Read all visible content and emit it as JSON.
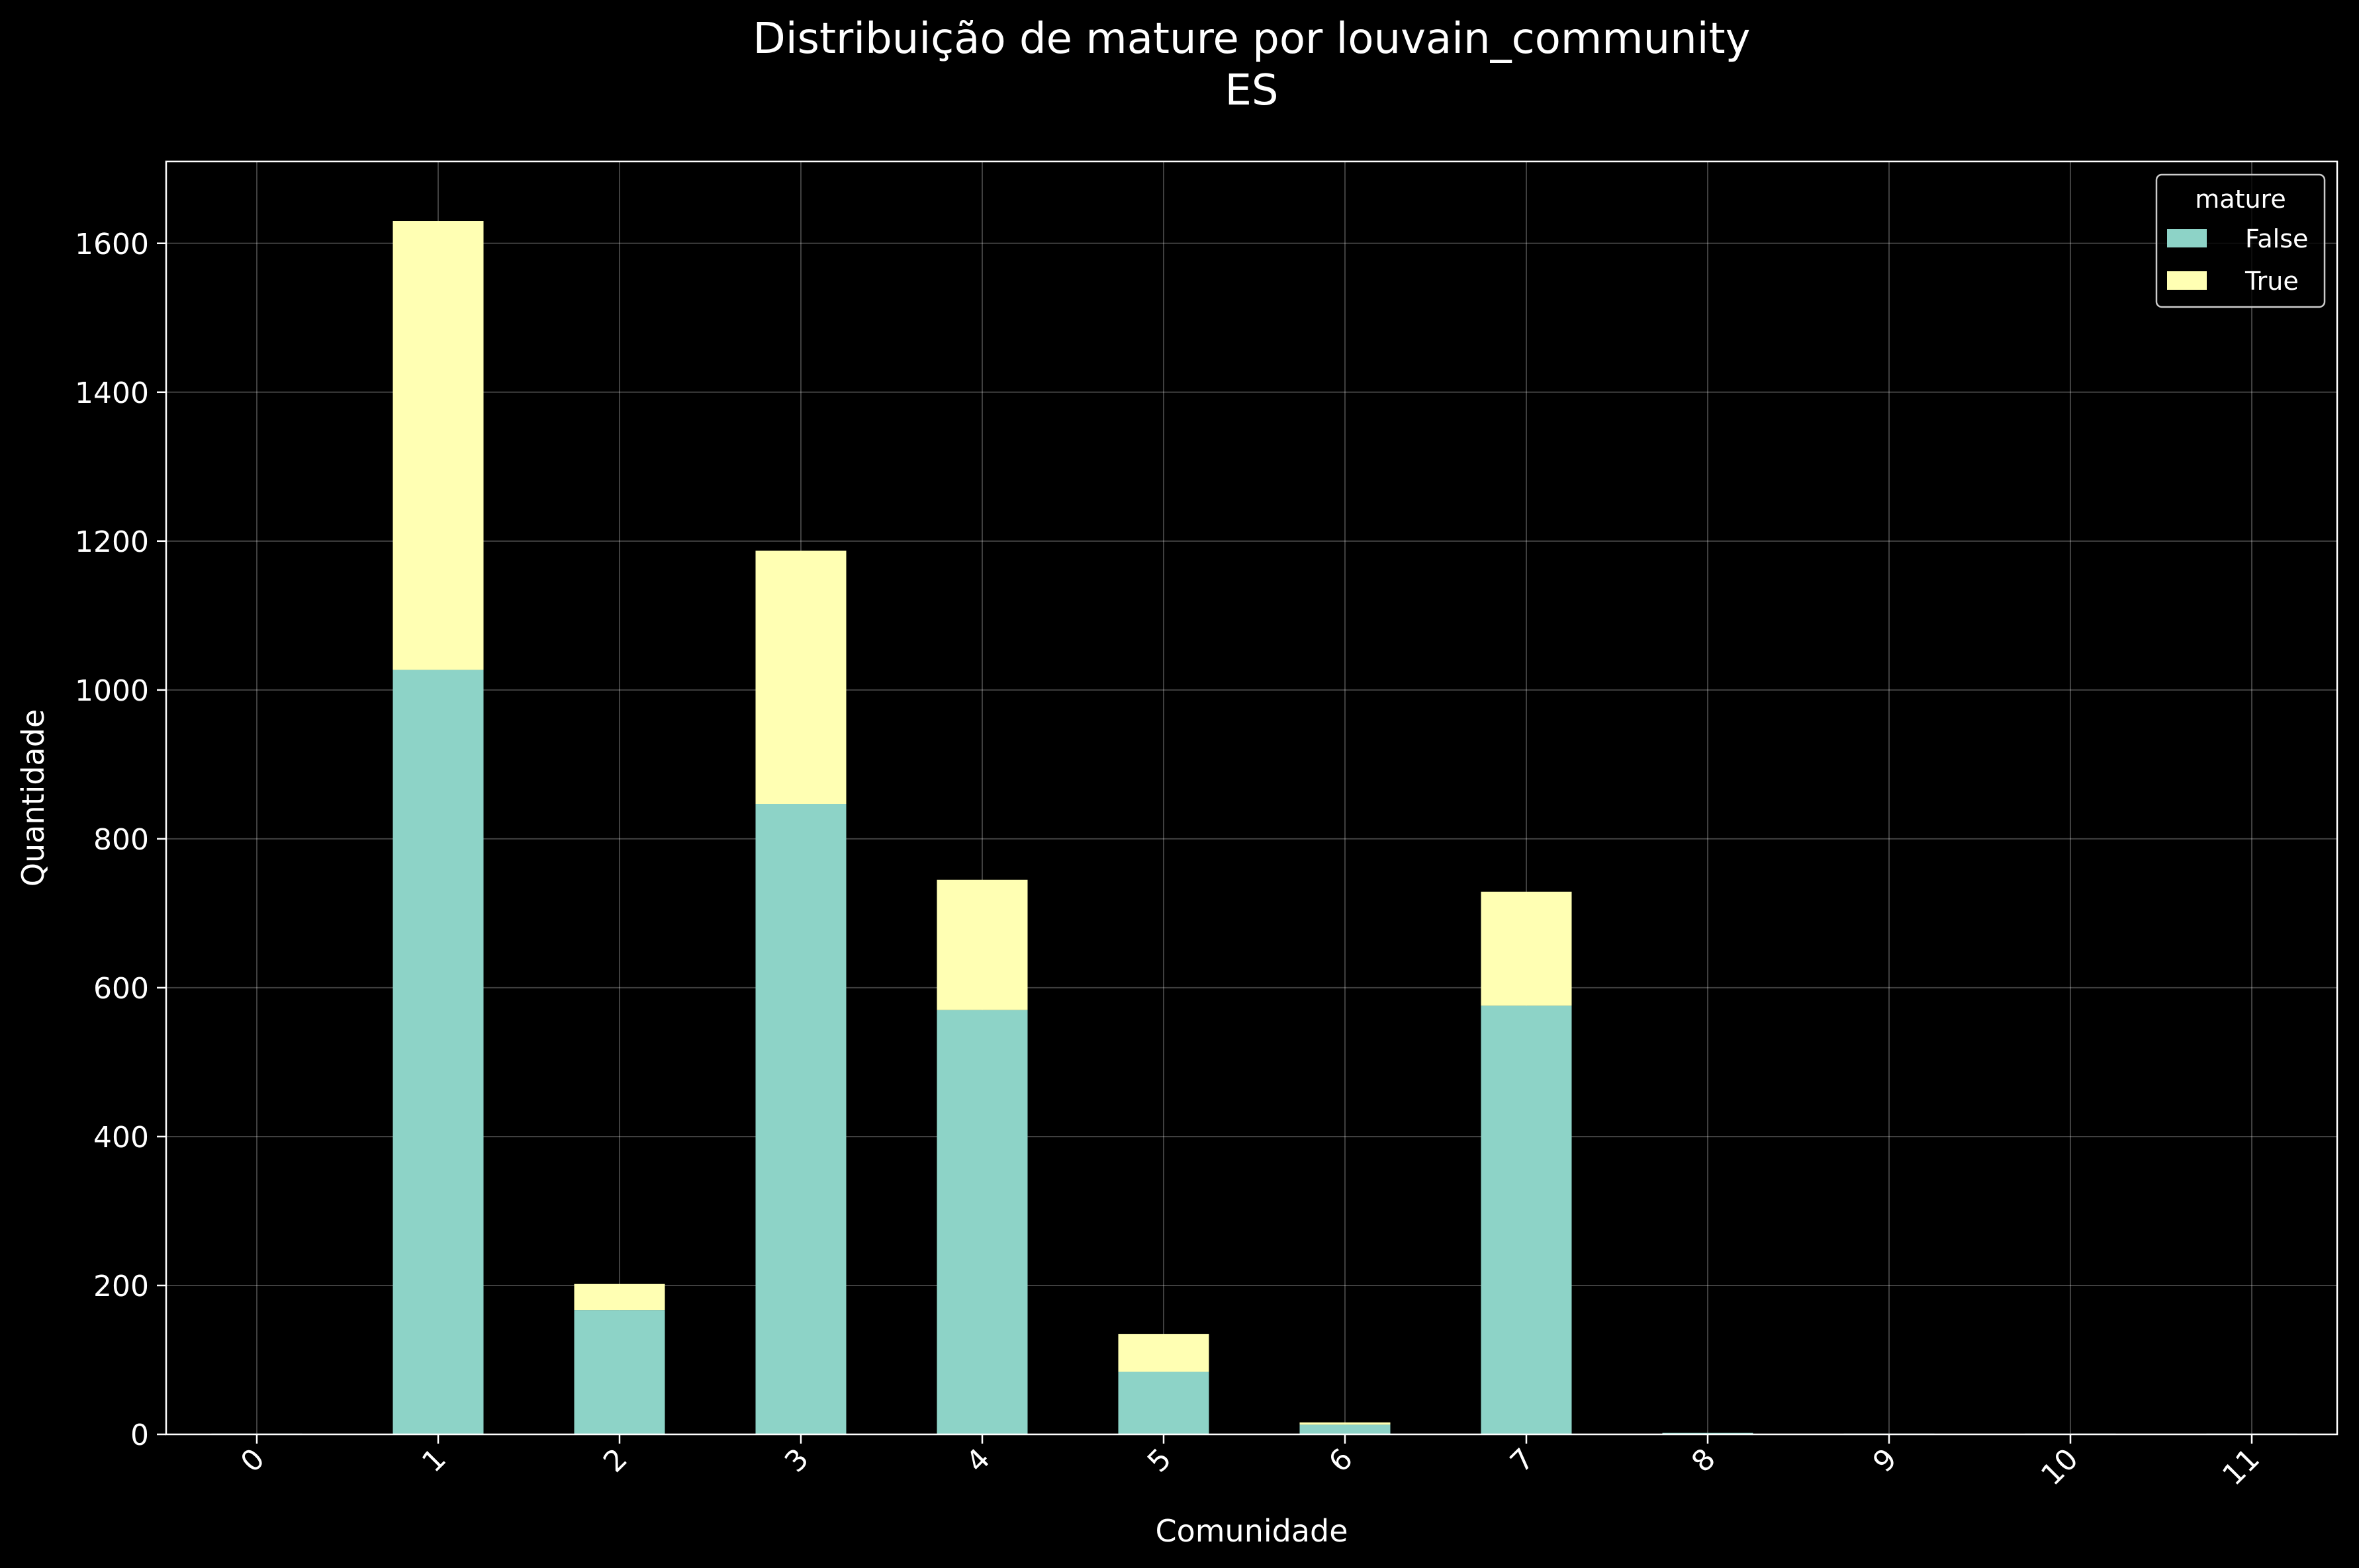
{
  "chart_data": {
    "type": "bar",
    "stacked": true,
    "title": "Distribuição de mature por louvain_community",
    "subtitle": "ES",
    "xlabel": "Comunidade",
    "ylabel": "Quantidade",
    "categories": [
      "0",
      "1",
      "2",
      "3",
      "4",
      "5",
      "6",
      "7",
      "8",
      "9",
      "10",
      "11"
    ],
    "series": [
      {
        "name": "False",
        "color": "#8dd3c7",
        "values": [
          1,
          1027,
          167,
          847,
          570,
          84,
          13,
          576,
          2,
          1,
          1,
          1
        ]
      },
      {
        "name": "True",
        "color": "#ffffb3",
        "values": [
          0,
          603,
          35,
          340,
          175,
          51,
          3,
          153,
          0,
          0,
          0,
          0
        ]
      }
    ],
    "ylim": [
      0,
      1710
    ],
    "yticks": [
      0,
      200,
      400,
      600,
      800,
      1000,
      1200,
      1400,
      1600
    ],
    "grid": true,
    "legend": {
      "title": "mature",
      "placement": "top-right"
    }
  }
}
